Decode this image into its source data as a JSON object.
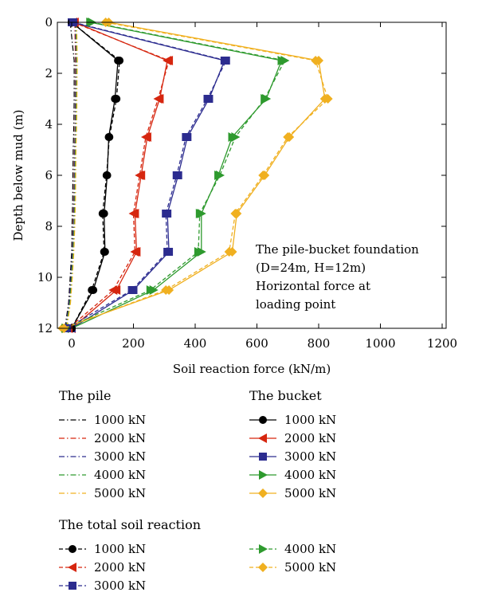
{
  "chart_data": {
    "type": "line",
    "xlabel": "Soil reaction force (kN/m)",
    "ylabel": "Depth below mud (m)",
    "xlim": [
      -30,
      1200
    ],
    "ylim": [
      12,
      0
    ],
    "y_axis_inverted": true,
    "x_ticks": [
      "0",
      "200",
      "400",
      "600",
      "800",
      "1000",
      "1200"
    ],
    "y_ticks": [
      "0",
      "2",
      "4",
      "6",
      "8",
      "10",
      "12"
    ],
    "grid": false,
    "annotation": [
      "The pile-bucket foundation",
      " (D=24m, H=12m)",
      "Horizontal force at",
      "loading point"
    ],
    "colors": {
      "1000 kN": "#000000",
      "2000 kN": "#d6260f",
      "3000 kN": "#2c2c8f",
      "4000 kN": "#2e9a2e",
      "5000 kN": "#f0b020"
    },
    "legend_groups": [
      {
        "title": "The pile",
        "group": "pile"
      },
      {
        "title": "The bucket",
        "group": "bucket"
      },
      {
        "title": "The total soil reaction",
        "group": "total"
      }
    ],
    "series": [
      {
        "name": "1000 kN",
        "group": "pile",
        "color": "#000000",
        "marker": "none",
        "line": "dashdot",
        "x": [
          -5,
          8,
          8,
          7,
          6,
          5,
          4,
          3,
          2,
          1,
          0,
          -5,
          -10,
          -22
        ],
        "y": [
          0,
          1.5,
          3,
          4,
          4.5,
          5,
          6,
          7,
          7.5,
          8,
          9,
          10,
          11,
          12
        ]
      },
      {
        "name": "2000 kN",
        "group": "pile",
        "color": "#d6260f",
        "marker": "none",
        "line": "dashdot",
        "x": [
          10,
          12,
          12,
          11,
          10,
          9,
          8,
          7,
          6,
          5,
          3,
          -2,
          -8,
          -20
        ],
        "y": [
          0,
          1.5,
          3,
          4,
          4.5,
          5,
          6,
          7,
          7.5,
          8,
          9,
          10,
          11,
          12
        ]
      },
      {
        "name": "3000 kN",
        "group": "pile",
        "color": "#2c2c8f",
        "marker": "none",
        "line": "dashdot",
        "x": [
          12,
          14,
          13,
          12,
          11,
          10,
          9,
          8,
          7,
          6,
          3,
          -2,
          -8,
          -20
        ],
        "y": [
          0,
          1.5,
          3,
          4,
          4.5,
          5,
          6,
          7,
          7.5,
          8,
          9,
          10,
          11,
          12
        ]
      },
      {
        "name": "4000 kN",
        "group": "pile",
        "color": "#2e9a2e",
        "marker": "none",
        "line": "dashdot",
        "x": [
          14,
          16,
          15,
          14,
          13,
          12,
          11,
          10,
          9,
          8,
          5,
          0,
          -6,
          -18
        ],
        "y": [
          0,
          1.5,
          3,
          4,
          4.5,
          5,
          6,
          7,
          7.5,
          8,
          9,
          10,
          11,
          12
        ]
      },
      {
        "name": "5000 kN",
        "group": "pile",
        "color": "#f0b020",
        "marker": "none",
        "line": "dashdot",
        "x": [
          16,
          18,
          17,
          16,
          15,
          14,
          13,
          12,
          11,
          10,
          7,
          2,
          -4,
          -16
        ],
        "y": [
          0,
          1.5,
          3,
          4,
          4.5,
          5,
          6,
          7,
          7.5,
          8,
          9,
          10,
          11,
          12
        ]
      },
      {
        "name": "1000 kN",
        "group": "bucket",
        "color": "#000000",
        "marker": "circle",
        "line": "solid",
        "x": [
          0,
          150,
          140,
          120,
          115,
          105,
          108,
          70,
          0
        ],
        "y": [
          0,
          1.5,
          3,
          4.5,
          6,
          7.5,
          9,
          10.5,
          12
        ]
      },
      {
        "name": "2000 kN",
        "group": "bucket",
        "color": "#d6260f",
        "marker": "triangle-left",
        "line": "solid",
        "x": [
          10,
          310,
          285,
          245,
          225,
          205,
          210,
          145,
          0
        ],
        "y": [
          0,
          1.5,
          3,
          4.5,
          6,
          7.5,
          9,
          10.5,
          12
        ]
      },
      {
        "name": "3000 kN",
        "group": "bucket",
        "color": "#2c2c8f",
        "marker": "square",
        "line": "solid",
        "x": [
          0,
          495,
          445,
          375,
          345,
          310,
          315,
          200,
          0
        ],
        "y": [
          0,
          1.5,
          3,
          4.5,
          6,
          7.5,
          9,
          10.5,
          12
        ]
      },
      {
        "name": "4000 kN",
        "group": "bucket",
        "color": "#2e9a2e",
        "marker": "triangle-right",
        "line": "solid",
        "x": [
          60,
          680,
          630,
          520,
          475,
          420,
          420,
          265,
          0
        ],
        "y": [
          0,
          1.5,
          3,
          4.5,
          6,
          7.5,
          9,
          10.5,
          12
        ]
      },
      {
        "name": "5000 kN",
        "group": "bucket",
        "color": "#f0b020",
        "marker": "diamond",
        "line": "solid",
        "x": [
          120,
          800,
          820,
          705,
          625,
          535,
          520,
          315,
          -30
        ],
        "y": [
          0,
          1.5,
          3,
          4.5,
          6,
          7.5,
          9,
          10.5,
          12
        ]
      },
      {
        "name": "1000 kN",
        "group": "total",
        "color": "#000000",
        "marker": "circle",
        "line": "dashed",
        "x": [
          0,
          155,
          145,
          122,
          113,
          100,
          105,
          65,
          0
        ],
        "y": [
          0,
          1.5,
          3,
          4.5,
          6,
          7.5,
          9,
          10.5,
          12
        ]
      },
      {
        "name": "2000 kN",
        "group": "total",
        "color": "#d6260f",
        "marker": "triangle-left",
        "line": "dashed",
        "x": [
          5,
          315,
          280,
          240,
          220,
          200,
          205,
          135,
          -10
        ],
        "y": [
          0,
          1.5,
          3,
          4.5,
          6,
          7.5,
          9,
          10.5,
          12
        ]
      },
      {
        "name": "3000 kN",
        "group": "total",
        "color": "#2c2c8f",
        "marker": "square",
        "line": "dashed",
        "x": [
          5,
          500,
          440,
          370,
          340,
          305,
          310,
          195,
          -15
        ],
        "y": [
          0,
          1.5,
          3,
          4.5,
          6,
          7.5,
          9,
          10.5,
          12
        ]
      },
      {
        "name": "4000 kN",
        "group": "total",
        "color": "#2e9a2e",
        "marker": "triangle-right",
        "line": "dashed",
        "x": [
          65,
          690,
          625,
          530,
          480,
          415,
          410,
          255,
          -20
        ],
        "y": [
          0,
          1.5,
          3,
          4.5,
          6,
          7.5,
          9,
          10.5,
          12
        ]
      },
      {
        "name": "5000 kN",
        "group": "total",
        "color": "#f0b020",
        "marker": "diamond",
        "line": "dashed",
        "x": [
          110,
          790,
          830,
          700,
          620,
          530,
          510,
          305,
          -25
        ],
        "y": [
          0,
          1.5,
          3,
          4.5,
          6,
          7.5,
          9,
          10.5,
          12
        ]
      }
    ]
  }
}
